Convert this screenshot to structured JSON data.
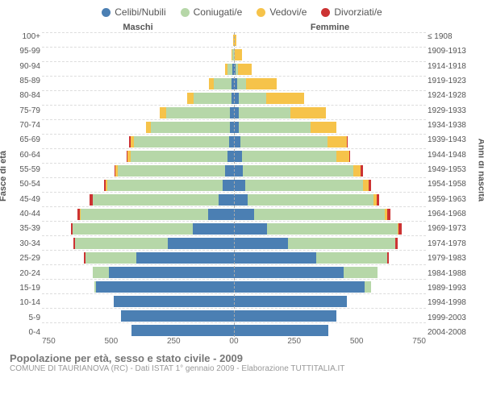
{
  "legend": [
    {
      "label": "Celibi/Nubili",
      "color": "#4b7fb3"
    },
    {
      "label": "Coniugati/e",
      "color": "#b6d7a8"
    },
    {
      "label": "Vedovi/e",
      "color": "#f6c34a"
    },
    {
      "label": "Divorziati/e",
      "color": "#cc3333"
    }
  ],
  "header_left": "Maschi",
  "header_right": "Femmine",
  "axis_left_title": "Fasce di età",
  "axis_right_title": "Anni di nascita",
  "title": "Popolazione per età, sesso e stato civile - 2009",
  "subtitle": "COMUNE DI TAURIANOVA (RC) - Dati ISTAT 1° gennaio 2009 - Elaborazione TUTTITALIA.IT",
  "xmax": 750,
  "xticks_left": [
    "750",
    "500",
    "250",
    "0"
  ],
  "xticks_right": [
    "0",
    "250",
    "500",
    "750"
  ],
  "age_labels": [
    "100+",
    "95-99",
    "90-94",
    "85-89",
    "80-84",
    "75-79",
    "70-74",
    "65-69",
    "60-64",
    "55-59",
    "50-54",
    "45-49",
    "40-44",
    "35-39",
    "30-34",
    "25-29",
    "20-24",
    "15-19",
    "10-14",
    "5-9",
    "0-4"
  ],
  "year_labels": [
    "≤ 1908",
    "1909-1913",
    "1914-1918",
    "1919-1923",
    "1924-1928",
    "1929-1933",
    "1934-1938",
    "1939-1943",
    "1944-1948",
    "1949-1953",
    "1954-1958",
    "1959-1963",
    "1964-1968",
    "1969-1973",
    "1974-1978",
    "1979-1983",
    "1984-1988",
    "1989-1993",
    "1994-1998",
    "1999-2003",
    "2004-2008"
  ],
  "rows": [
    {
      "m": {
        "c": 0,
        "g": 0,
        "v": 3,
        "d": 0
      },
      "f": {
        "c": 0,
        "g": 0,
        "v": 10,
        "d": 0
      }
    },
    {
      "m": {
        "c": 0,
        "g": 5,
        "v": 5,
        "d": 0
      },
      "f": {
        "c": 0,
        "g": 3,
        "v": 30,
        "d": 0
      }
    },
    {
      "m": {
        "c": 5,
        "g": 20,
        "v": 10,
        "d": 0
      },
      "f": {
        "c": 5,
        "g": 10,
        "v": 55,
        "d": 0
      }
    },
    {
      "m": {
        "c": 8,
        "g": 70,
        "v": 20,
        "d": 0
      },
      "f": {
        "c": 12,
        "g": 35,
        "v": 120,
        "d": 0
      }
    },
    {
      "m": {
        "c": 8,
        "g": 150,
        "v": 25,
        "d": 0
      },
      "f": {
        "c": 20,
        "g": 105,
        "v": 150,
        "d": 0
      }
    },
    {
      "m": {
        "c": 15,
        "g": 250,
        "v": 25,
        "d": 0
      },
      "f": {
        "c": 20,
        "g": 200,
        "v": 140,
        "d": 0
      }
    },
    {
      "m": {
        "c": 15,
        "g": 310,
        "v": 20,
        "d": 0
      },
      "f": {
        "c": 20,
        "g": 280,
        "v": 100,
        "d": 0
      }
    },
    {
      "m": {
        "c": 20,
        "g": 370,
        "v": 15,
        "d": 5
      },
      "f": {
        "c": 25,
        "g": 340,
        "v": 75,
        "d": 5
      }
    },
    {
      "m": {
        "c": 25,
        "g": 380,
        "v": 10,
        "d": 5
      },
      "f": {
        "c": 30,
        "g": 370,
        "v": 50,
        "d": 5
      }
    },
    {
      "m": {
        "c": 35,
        "g": 420,
        "v": 8,
        "d": 5
      },
      "f": {
        "c": 35,
        "g": 430,
        "v": 30,
        "d": 8
      }
    },
    {
      "m": {
        "c": 45,
        "g": 450,
        "v": 5,
        "d": 8
      },
      "f": {
        "c": 45,
        "g": 460,
        "v": 20,
        "d": 10
      }
    },
    {
      "m": {
        "c": 60,
        "g": 490,
        "v": 3,
        "d": 10
      },
      "f": {
        "c": 55,
        "g": 490,
        "v": 12,
        "d": 10
      }
    },
    {
      "m": {
        "c": 100,
        "g": 500,
        "v": 2,
        "d": 10
      },
      "f": {
        "c": 80,
        "g": 510,
        "v": 8,
        "d": 12
      }
    },
    {
      "m": {
        "c": 160,
        "g": 470,
        "v": 0,
        "d": 8
      },
      "f": {
        "c": 130,
        "g": 510,
        "v": 3,
        "d": 12
      }
    },
    {
      "m": {
        "c": 260,
        "g": 360,
        "v": 0,
        "d": 8
      },
      "f": {
        "c": 210,
        "g": 420,
        "v": 0,
        "d": 10
      }
    },
    {
      "m": {
        "c": 380,
        "g": 200,
        "v": 0,
        "d": 5
      },
      "f": {
        "c": 320,
        "g": 280,
        "v": 0,
        "d": 5
      }
    },
    {
      "m": {
        "c": 490,
        "g": 60,
        "v": 0,
        "d": 0
      },
      "f": {
        "c": 430,
        "g": 130,
        "v": 0,
        "d": 0
      }
    },
    {
      "m": {
        "c": 540,
        "g": 5,
        "v": 0,
        "d": 0
      },
      "f": {
        "c": 510,
        "g": 25,
        "v": 0,
        "d": 0
      }
    },
    {
      "m": {
        "c": 470,
        "g": 0,
        "v": 0,
        "d": 0
      },
      "f": {
        "c": 440,
        "g": 0,
        "v": 0,
        "d": 0
      }
    },
    {
      "m": {
        "c": 440,
        "g": 0,
        "v": 0,
        "d": 0
      },
      "f": {
        "c": 400,
        "g": 0,
        "v": 0,
        "d": 0
      }
    },
    {
      "m": {
        "c": 400,
        "g": 0,
        "v": 0,
        "d": 0
      },
      "f": {
        "c": 370,
        "g": 0,
        "v": 0,
        "d": 0
      }
    }
  ],
  "colors": {
    "c": "#4b7fb3",
    "g": "#b6d7a8",
    "v": "#f6c34a",
    "d": "#cc3333",
    "grid": "#dddddd",
    "bg": "#ffffff"
  }
}
